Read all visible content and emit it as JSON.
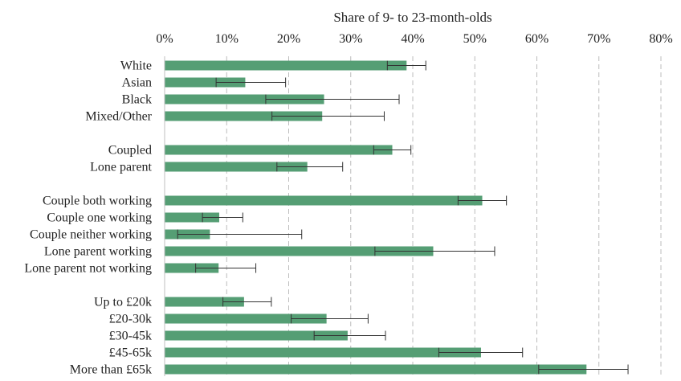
{
  "chart_data": {
    "type": "bar",
    "orientation": "horizontal",
    "title": "",
    "xlabel": "Share of 9- to 23-month-olds",
    "ylabel": "",
    "xlim": [
      0,
      80
    ],
    "x_ticks": [
      "0%",
      "10%",
      "20%",
      "30%",
      "40%",
      "50%",
      "60%",
      "70%",
      "80%"
    ],
    "x_axis_position": "top",
    "grid": "vertical dashed",
    "bar_color": "#559e74",
    "error_bar_color": "#333333",
    "categories": [
      "White",
      "Asian",
      "Black",
      "Mixed/Other",
      "Coupled",
      "Lone parent",
      "Couple both working",
      "Couple one working",
      "Couple neither working",
      "Lone parent working",
      "Lone parent not working",
      "Up to £20k",
      "£20-30k",
      "£30-45k",
      "£45-65k",
      "More than £65k"
    ],
    "groups": [
      4,
      2,
      5,
      5
    ],
    "values": [
      39,
      13,
      25.7,
      25.4,
      36.7,
      23,
      51.2,
      8.8,
      7.3,
      43.3,
      8.7,
      12.8,
      26.1,
      29.5,
      51,
      68
    ],
    "error_low": [
      35.9,
      8.3,
      16.3,
      17.3,
      33.7,
      18.1,
      47.3,
      6.1,
      2.1,
      33.9,
      5,
      9.4,
      20.4,
      24.1,
      44.2,
      60.3
    ],
    "error_high": [
      42.1,
      19.5,
      37.8,
      35.4,
      39.7,
      28.7,
      55.1,
      12.6,
      22.1,
      53.2,
      14.7,
      17.2,
      32.8,
      35.6,
      57.7,
      74.7
    ]
  }
}
